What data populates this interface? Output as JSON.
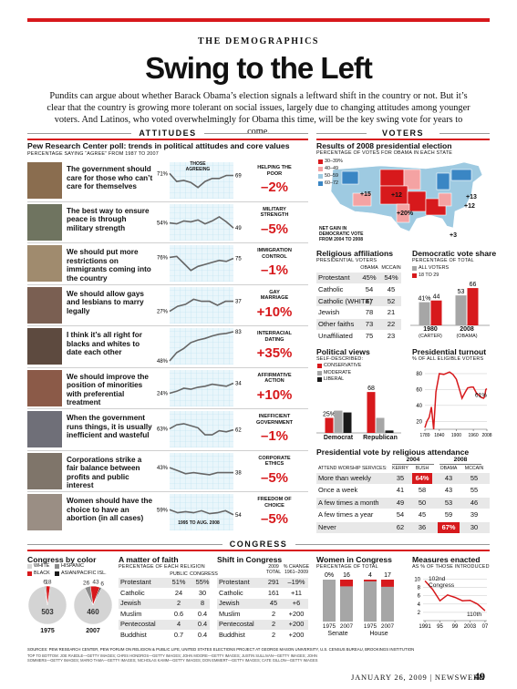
{
  "header": {
    "section": "THE DEMOGRAPHICS",
    "title": "Swing to the Left",
    "intro": "Pundits can argue about whether Barack Obama’s election signals a leftward shift in the country or not. But it’s clear that the country is growing more tolerant on social issues, largely due to changing attitudes among younger voters. And Latinos, who voted overwhelmingly for Obama this time, will be the key swing vote for years to come."
  },
  "attitudes": {
    "heading": "ATTITUDES",
    "title": "Pew Research Center poll: trends in political attitudes and core values",
    "subtitle": "PERCENTAGE SAYING “AGREE” FROM 1987 TO 2007",
    "annotations": [
      "THOSE AGREEING",
      "1995 TO AUG. 2008"
    ],
    "type": "line",
    "color": "#666666",
    "change_color": "#d7191c",
    "rows": [
      {
        "statement": "The government should care for those who can’t care for themselves",
        "values": [
          71,
          63,
          64,
          62,
          57,
          63,
          66,
          66,
          69,
          69
        ],
        "value_labels": [
          "71%",
          null,
          null,
          null,
          null,
          null,
          null,
          null,
          null,
          "69"
        ],
        "label": "HELPING THE POOR",
        "change": "–2%"
      },
      {
        "statement": "The best way to ensure peace is through military strength",
        "values": [
          54,
          53,
          56,
          55,
          57,
          53,
          56,
          60,
          55,
          49
        ],
        "value_labels": [
          "54%",
          null,
          null,
          null,
          null,
          null,
          null,
          null,
          null,
          "49"
        ],
        "label": "MILITARY STRENGTH",
        "change": "–5%"
      },
      {
        "statement": "We should put more restrictions on immigrants coming into the country",
        "values": [
          76,
          77,
          70,
          63,
          67,
          69,
          71,
          73,
          72,
          75
        ],
        "value_labels": [
          "76%",
          null,
          null,
          null,
          null,
          null,
          null,
          null,
          null,
          "75"
        ],
        "label": "IMMIGRATION CONTROL",
        "change": "–1%"
      },
      {
        "statement": "We should allow gays and lesbians to marry legally",
        "values": [
          27,
          32,
          34,
          39,
          37,
          37,
          33,
          37,
          37
        ],
        "value_labels": [
          "27%",
          null,
          null,
          null,
          null,
          null,
          null,
          null,
          "37"
        ],
        "label": "GAY MARRIAGE",
        "change": "+10%"
      },
      {
        "statement": "I think it’s all right for blacks and whites to date each other",
        "values": [
          48,
          58,
          63,
          70,
          73,
          75,
          78,
          80,
          81,
          83
        ],
        "value_labels": [
          "48%",
          null,
          null,
          null,
          null,
          null,
          null,
          null,
          null,
          "83"
        ],
        "label": "INTERRACIAL DATING",
        "change": "+35%"
      },
      {
        "statement": "We should improve the position of minorities with preferential treatment",
        "values": [
          24,
          26,
          29,
          28,
          30,
          31,
          33,
          32,
          31,
          34
        ],
        "value_labels": [
          "24%",
          null,
          null,
          null,
          null,
          null,
          null,
          null,
          null,
          "34"
        ],
        "label": "AFFIRMATIVE ACTION",
        "change": "+10%"
      },
      {
        "statement": "When the government runs things, it is usually inefficient and wasteful",
        "values": [
          63,
          67,
          68,
          66,
          64,
          57,
          57,
          61,
          60,
          62
        ],
        "value_labels": [
          "63%",
          null,
          null,
          null,
          null,
          null,
          null,
          null,
          null,
          "62"
        ],
        "label": "INEFFICIENT GOVERNMENT",
        "change": "–1%"
      },
      {
        "statement": "Corporations strike a fair balance between profits and public interest",
        "values": [
          43,
          40,
          37,
          38,
          37,
          36,
          38,
          38,
          38
        ],
        "value_labels": [
          "43%",
          null,
          null,
          null,
          null,
          null,
          null,
          null,
          "38"
        ],
        "label": "CORPORATE ETHICS",
        "change": "–5%"
      },
      {
        "statement": "Women should have the choice to have an abortion (in all cases)",
        "values": [
          59,
          56,
          57,
          56,
          58,
          55,
          56,
          58,
          54
        ],
        "value_labels": [
          "59%",
          null,
          null,
          null,
          null,
          null,
          null,
          null,
          "54"
        ],
        "label": "FREEDOM OF CHOICE",
        "change": "–5%"
      }
    ]
  },
  "voters": {
    "heading": "VOTERS",
    "map": {
      "type": "map",
      "title": "Results of 2008 presidential election",
      "subtitle": "PERCENTAGE OF VOTES FOR OBAMA IN EACH STATE",
      "legend": [
        {
          "label": "30–39%",
          "color": "#d7191c"
        },
        {
          "label": "40–49",
          "color": "#f4a3a3"
        },
        {
          "label": "50–59",
          "color": "#9ecae1"
        },
        {
          "label": "60–72",
          "color": "#3a86c4"
        }
      ],
      "gains": [
        "+15",
        "+12",
        "+20%",
        "+13",
        "+12",
        "+3"
      ],
      "note": "NET GAIN IN DEMOCRATIC VOTE FROM 2004 TO 2008"
    },
    "religion": {
      "type": "table",
      "title": "Religious affiliations",
      "subtitle": "PRESIDENTIAL VOTERS",
      "columns": [
        "OBAMA",
        "MCCAIN"
      ],
      "rows": [
        [
          "Protestant",
          "45%",
          "54%"
        ],
        [
          "Catholic",
          "54",
          "45"
        ],
        [
          "Catholic (WHITE)",
          "47",
          "52"
        ],
        [
          "Jewish",
          "78",
          "21"
        ],
        [
          "Other faiths",
          "73",
          "22"
        ],
        [
          "Unaffiliated",
          "75",
          "23"
        ]
      ]
    },
    "vote_share": {
      "type": "bar",
      "title": "Democratic vote share",
      "subtitle": "PERCENTAGE OF TOTAL",
      "categories": [
        "1980",
        "2008"
      ],
      "sublabels": [
        "(CARTER)",
        "(OBAMA)"
      ],
      "series": [
        {
          "name": "ALL VOTERS",
          "color": "#a6a6a6",
          "values": [
            41,
            53
          ],
          "value_labels": [
            "41%",
            "53"
          ]
        },
        {
          "name": "18 TO 29",
          "color": "#d7191c",
          "values": [
            44,
            66
          ],
          "value_labels": [
            "44",
            "66"
          ]
        }
      ]
    },
    "views": {
      "type": "bar",
      "title": "Political views",
      "subtitle": "SELF-DESCRIBED:",
      "categories": [
        "Democrat",
        "Republican"
      ],
      "series": [
        {
          "name": "CONSERVATIVE",
          "color": "#d7191c",
          "values": [
            25,
            68
          ],
          "value_labels": [
            "25%",
            "68"
          ]
        },
        {
          "name": "MODERATE",
          "color": "#a6a6a6",
          "values": [
            37,
            25
          ]
        },
        {
          "name": "LIBERAL",
          "color": "#1a1a1a",
          "values": [
            34,
            4
          ]
        }
      ]
    },
    "turnout": {
      "type": "line",
      "title": "Presidential turnout",
      "subtitle": "% OF ALL ELIGIBLE VOTERS",
      "color": "#d7191c",
      "x": [
        1789,
        1796,
        1804,
        1812,
        1820,
        1828,
        1840,
        1856,
        1876,
        1888,
        1900,
        1912,
        1920,
        1932,
        1940,
        1952,
        1960,
        1972,
        1980,
        1988,
        1996,
        2000,
        2004,
        2008
      ],
      "values": [
        12,
        20,
        25,
        38,
        10,
        57,
        80,
        79,
        82,
        79,
        73,
        59,
        49,
        57,
        62,
        63,
        63,
        55,
        53,
        50,
        49,
        51,
        60,
        61
      ],
      "value_labels": [
        null,
        null,
        null,
        null,
        null,
        null,
        null,
        null,
        null,
        null,
        null,
        null,
        null,
        null,
        null,
        null,
        null,
        null,
        null,
        null,
        null,
        null,
        null,
        "61%"
      ],
      "xlim": [
        1789,
        2008
      ],
      "xticks": [
        1789,
        1840,
        1900,
        1960,
        2008
      ],
      "ylim": [
        10,
        88
      ],
      "yticks": [
        20,
        40,
        60,
        80
      ],
      "grid": true
    },
    "attendance": {
      "type": "table",
      "title": "Presidential vote by religious attendance",
      "years": [
        "2004",
        "2008"
      ],
      "columns": [
        "ATTEND WORSHIP SERVICES:",
        "KERRY",
        "BUSH",
        "OBAMA",
        "MCCAIN"
      ],
      "rows": [
        [
          "More than weekly",
          "35",
          "64%",
          "43",
          "55"
        ],
        [
          "Once a week",
          "41",
          "58",
          "43",
          "55"
        ],
        [
          "A few times a month",
          "49",
          "50",
          "53",
          "46"
        ],
        [
          "A few times a year",
          "54",
          "45",
          "59",
          "39"
        ],
        [
          "Never",
          "62",
          "36",
          "67%",
          "30"
        ]
      ],
      "highlight_cells": [
        "0.2",
        "4.3"
      ],
      "highlight_color": "#d7191c"
    }
  },
  "congress": {
    "heading": "CONGRESS",
    "color": {
      "type": "pie",
      "title": "Congress by color",
      "categories": [
        "WHITE",
        "HISPANIC",
        "BLACK",
        "ASIAN/PACIFIC ISL."
      ],
      "colors": [
        "#d4d4d4",
        "#8c8c8c",
        "#d7191c",
        "#1a1a1a"
      ],
      "pies": [
        {
          "label": "1975",
          "values": [
            503,
            6,
            18,
            null
          ]
        },
        {
          "label": "2007",
          "values": [
            460,
            26,
            43,
            6
          ]
        }
      ]
    },
    "faith": {
      "type": "table",
      "title": "A matter of faith",
      "subtitle": "PERCENTAGE OF EACH RELIGION",
      "columns": [
        "PUBLIC",
        "CONGRESS"
      ],
      "rows": [
        [
          "Protestant",
          "51%",
          "55%"
        ],
        [
          "Catholic",
          "24",
          "30"
        ],
        [
          "Jewish",
          "2",
          "8"
        ],
        [
          "Muslim",
          "0.6",
          "0.4"
        ],
        [
          "Pentecostal",
          "4",
          "0.4"
        ],
        [
          "Buddhist",
          "0.7",
          "0.4"
        ]
      ]
    },
    "shift": {
      "type": "table",
      "title": "Shift in Congress",
      "columns": [
        "2009 TOTAL",
        "% CHANGE 1961–2009"
      ],
      "rows": [
        [
          "Protestant",
          "291",
          "–19%"
        ],
        [
          "Catholic",
          "161",
          "+11"
        ],
        [
          "Jewish",
          "45",
          "+6"
        ],
        [
          "Muslim",
          "2",
          "+200"
        ],
        [
          "Pentecostal",
          "2",
          "+200"
        ],
        [
          "Buddhist",
          "2",
          "+200"
        ]
      ]
    },
    "women": {
      "type": "bar",
      "title": "Women in Congress",
      "subtitle": "PERCENTAGE OF TOTAL",
      "categories": [
        "1975",
        "2007",
        "1975",
        "2007"
      ],
      "groups": [
        "Senate",
        "House"
      ],
      "values": [
        0,
        16,
        4,
        17
      ],
      "value_labels": [
        "0%",
        "16",
        "4",
        "17"
      ],
      "color": "#d7191c",
      "total_color": "#a6a6a6",
      "ylim": [
        0,
        100
      ]
    },
    "measures": {
      "type": "line",
      "title": "Measures enacted",
      "subtitle": "AS % OF THOSE INTRODUCED",
      "color": "#d7191c",
      "x": [
        1991,
        1993,
        1995,
        1997,
        1999,
        2001,
        2003,
        2005,
        2007
      ],
      "values": [
        9.6,
        7.6,
        4.8,
        6.2,
        5.6,
        4.8,
        4.9,
        4.0,
        2.4
      ],
      "xlim": [
        1990.5,
        2007.5
      ],
      "xticks": [
        1991,
        {
          "value": 1995,
          "label": "95"
        },
        {
          "value": 1999,
          "label": "99"
        },
        2003,
        {
          "value": 2007,
          "label": "07"
        }
      ],
      "ylim": [
        0,
        11
      ],
      "yticks": [
        2,
        4,
        6,
        8,
        10
      ],
      "grid": true,
      "annotations": [
        "102nd Congress",
        "110th"
      ]
    }
  },
  "footer": {
    "sources": "SOURCES: PEW RESEARCH CENTER, PEW FORUM ON RELIGION & PUBLIC LIFE, UNITED STATES ELECTIONS PROJECT AT GEORGE MASON UNIVERSITY, U.S. CENSUS BUREAU, BROOKINGS INSTITUTION",
    "credits": "TOP TO BOTTOM: JOE RAEDLE—GETTY IMAGES; CHRIS HONDROS—GETTY IMAGES; JOHN MOORE—GETTY IMAGES; JUSTIN SULLIVAN—GETTY IMAGES; JOHN SOMMERS—GETTY IMAGES; MARIO TAMA—GETTY IMAGES; NICHOLAS KAMM—GETTY IMAGES; DON EMMERT—GETTY IMAGES; CATE GILLON—GETTY IMAGES",
    "date": "JANUARY 26, 2009 | NEWSWEEK",
    "page": "49"
  }
}
